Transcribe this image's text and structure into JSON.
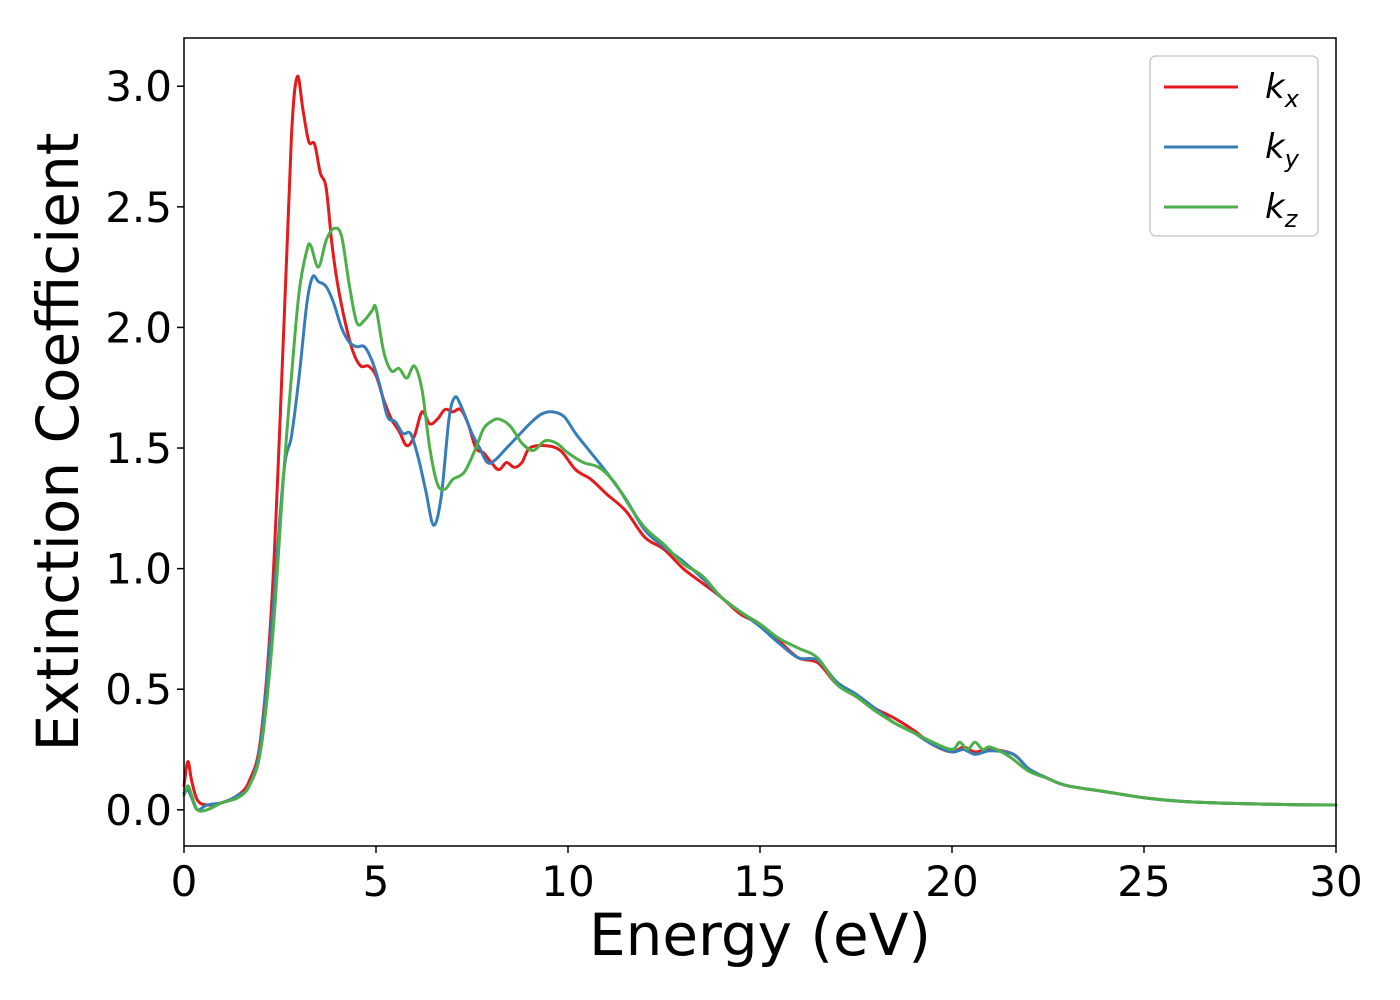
{
  "chart_data": {
    "type": "line",
    "xlabel": "Energy (eV)",
    "ylabel": "Extinction Coefficient",
    "xlim": [
      0,
      30
    ],
    "ylim": [
      -0.15,
      3.2
    ],
    "xticks": [
      0,
      5,
      10,
      15,
      20,
      25,
      30
    ],
    "xtick_labels": [
      "0",
      "5",
      "10",
      "15",
      "20",
      "25",
      "30"
    ],
    "yticks": [
      0.0,
      0.5,
      1.0,
      1.5,
      2.0,
      2.5,
      3.0
    ],
    "ytick_labels": [
      "0.0",
      "0.5",
      "1.0",
      "1.5",
      "2.0",
      "2.5",
      "3.0"
    ],
    "grid": false,
    "legend_position": "top-right",
    "series": [
      {
        "name": "k",
        "subscript": "x",
        "color": "#e41a1c",
        "points": [
          [
            0,
            0.1
          ],
          [
            0.1,
            0.2
          ],
          [
            0.2,
            0.12
          ],
          [
            0.35,
            0.04
          ],
          [
            0.6,
            0.02
          ],
          [
            1.0,
            0.03
          ],
          [
            1.4,
            0.06
          ],
          [
            1.7,
            0.12
          ],
          [
            2.0,
            0.3
          ],
          [
            2.3,
            0.9
          ],
          [
            2.6,
            2.0
          ],
          [
            2.8,
            2.8
          ],
          [
            2.95,
            3.04
          ],
          [
            3.1,
            2.9
          ],
          [
            3.25,
            2.77
          ],
          [
            3.4,
            2.76
          ],
          [
            3.55,
            2.64
          ],
          [
            3.7,
            2.58
          ],
          [
            3.85,
            2.35
          ],
          [
            4.0,
            2.18
          ],
          [
            4.2,
            2.02
          ],
          [
            4.4,
            1.9
          ],
          [
            4.6,
            1.84
          ],
          [
            4.8,
            1.84
          ],
          [
            5.0,
            1.8
          ],
          [
            5.2,
            1.7
          ],
          [
            5.4,
            1.62
          ],
          [
            5.6,
            1.57
          ],
          [
            5.8,
            1.51
          ],
          [
            6.0,
            1.55
          ],
          [
            6.2,
            1.65
          ],
          [
            6.4,
            1.6
          ],
          [
            6.6,
            1.62
          ],
          [
            6.8,
            1.66
          ],
          [
            7.0,
            1.65
          ],
          [
            7.2,
            1.66
          ],
          [
            7.4,
            1.6
          ],
          [
            7.6,
            1.5
          ],
          [
            7.8,
            1.48
          ],
          [
            8.0,
            1.44
          ],
          [
            8.2,
            1.41
          ],
          [
            8.4,
            1.44
          ],
          [
            8.6,
            1.42
          ],
          [
            8.8,
            1.44
          ],
          [
            9.0,
            1.5
          ],
          [
            9.4,
            1.51
          ],
          [
            9.8,
            1.49
          ],
          [
            10.2,
            1.41
          ],
          [
            10.6,
            1.37
          ],
          [
            11.0,
            1.31
          ],
          [
            11.5,
            1.24
          ],
          [
            12.0,
            1.13
          ],
          [
            12.5,
            1.08
          ],
          [
            13.0,
            1.0
          ],
          [
            13.5,
            0.94
          ],
          [
            14.0,
            0.88
          ],
          [
            14.5,
            0.81
          ],
          [
            15.0,
            0.77
          ],
          [
            15.5,
            0.7
          ],
          [
            16.0,
            0.63
          ],
          [
            16.5,
            0.61
          ],
          [
            17.0,
            0.52
          ],
          [
            17.5,
            0.47
          ],
          [
            18.0,
            0.42
          ],
          [
            18.5,
            0.38
          ],
          [
            19.0,
            0.33
          ],
          [
            19.5,
            0.27
          ],
          [
            20.0,
            0.24
          ],
          [
            20.3,
            0.26
          ],
          [
            20.6,
            0.24
          ],
          [
            21.0,
            0.25
          ],
          [
            21.6,
            0.23
          ],
          [
            22.0,
            0.17
          ],
          [
            22.5,
            0.13
          ],
          [
            23.0,
            0.1
          ],
          [
            24.0,
            0.075
          ],
          [
            25.0,
            0.05
          ],
          [
            26.0,
            0.035
          ],
          [
            27.0,
            0.028
          ],
          [
            28.0,
            0.024
          ],
          [
            29.0,
            0.021
          ],
          [
            30.0,
            0.02
          ]
        ]
      },
      {
        "name": "k",
        "subscript": "y",
        "color": "#377eb8",
        "points": [
          [
            0,
            0.07
          ],
          [
            0.1,
            0.08
          ],
          [
            0.2,
            0.05
          ],
          [
            0.35,
            0.0
          ],
          [
            0.6,
            0.02
          ],
          [
            1.0,
            0.03
          ],
          [
            1.4,
            0.06
          ],
          [
            1.7,
            0.1
          ],
          [
            2.0,
            0.28
          ],
          [
            2.3,
            0.8
          ],
          [
            2.6,
            1.4
          ],
          [
            2.8,
            1.55
          ],
          [
            3.0,
            1.8
          ],
          [
            3.2,
            2.1
          ],
          [
            3.35,
            2.21
          ],
          [
            3.5,
            2.19
          ],
          [
            3.7,
            2.17
          ],
          [
            3.9,
            2.1
          ],
          [
            4.1,
            2.0
          ],
          [
            4.3,
            1.94
          ],
          [
            4.5,
            1.92
          ],
          [
            4.7,
            1.92
          ],
          [
            4.9,
            1.86
          ],
          [
            5.1,
            1.76
          ],
          [
            5.3,
            1.63
          ],
          [
            5.5,
            1.61
          ],
          [
            5.7,
            1.56
          ],
          [
            5.9,
            1.56
          ],
          [
            6.1,
            1.46
          ],
          [
            6.3,
            1.32
          ],
          [
            6.5,
            1.18
          ],
          [
            6.7,
            1.3
          ],
          [
            6.9,
            1.62
          ],
          [
            7.05,
            1.71
          ],
          [
            7.2,
            1.68
          ],
          [
            7.5,
            1.56
          ],
          [
            7.7,
            1.5
          ],
          [
            7.9,
            1.44
          ],
          [
            8.1,
            1.45
          ],
          [
            8.4,
            1.5
          ],
          [
            8.7,
            1.55
          ],
          [
            9.0,
            1.6
          ],
          [
            9.3,
            1.64
          ],
          [
            9.6,
            1.65
          ],
          [
            9.9,
            1.63
          ],
          [
            10.2,
            1.56
          ],
          [
            10.6,
            1.48
          ],
          [
            11.0,
            1.4
          ],
          [
            11.5,
            1.29
          ],
          [
            12.0,
            1.16
          ],
          [
            12.5,
            1.09
          ],
          [
            13.0,
            1.03
          ],
          [
            13.5,
            0.96
          ],
          [
            14.0,
            0.88
          ],
          [
            14.5,
            0.82
          ],
          [
            15.0,
            0.76
          ],
          [
            15.5,
            0.69
          ],
          [
            16.0,
            0.63
          ],
          [
            16.5,
            0.62
          ],
          [
            17.0,
            0.53
          ],
          [
            17.5,
            0.48
          ],
          [
            18.0,
            0.42
          ],
          [
            18.5,
            0.36
          ],
          [
            19.0,
            0.32
          ],
          [
            19.5,
            0.27
          ],
          [
            20.0,
            0.24
          ],
          [
            20.3,
            0.25
          ],
          [
            20.6,
            0.23
          ],
          [
            21.0,
            0.245
          ],
          [
            21.6,
            0.23
          ],
          [
            22.0,
            0.17
          ],
          [
            22.5,
            0.13
          ],
          [
            23.0,
            0.1
          ],
          [
            24.0,
            0.075
          ],
          [
            25.0,
            0.05
          ],
          [
            26.0,
            0.035
          ],
          [
            27.0,
            0.028
          ],
          [
            28.0,
            0.024
          ],
          [
            29.0,
            0.021
          ],
          [
            30.0,
            0.02
          ]
        ]
      },
      {
        "name": "k",
        "subscript": "z",
        "color": "#4daf4a",
        "points": [
          [
            0,
            0.06
          ],
          [
            0.1,
            0.1
          ],
          [
            0.2,
            0.06
          ],
          [
            0.35,
            0.0
          ],
          [
            0.6,
            0.0
          ],
          [
            1.0,
            0.03
          ],
          [
            1.4,
            0.05
          ],
          [
            1.7,
            0.1
          ],
          [
            2.0,
            0.25
          ],
          [
            2.3,
            0.7
          ],
          [
            2.6,
            1.4
          ],
          [
            2.8,
            1.8
          ],
          [
            3.0,
            2.15
          ],
          [
            3.2,
            2.32
          ],
          [
            3.3,
            2.34
          ],
          [
            3.5,
            2.25
          ],
          [
            3.7,
            2.36
          ],
          [
            3.9,
            2.41
          ],
          [
            4.1,
            2.38
          ],
          [
            4.3,
            2.18
          ],
          [
            4.5,
            2.02
          ],
          [
            4.7,
            2.03
          ],
          [
            4.9,
            2.07
          ],
          [
            5.0,
            2.08
          ],
          [
            5.2,
            1.9
          ],
          [
            5.4,
            1.82
          ],
          [
            5.6,
            1.83
          ],
          [
            5.8,
            1.79
          ],
          [
            6.0,
            1.84
          ],
          [
            6.2,
            1.74
          ],
          [
            6.4,
            1.5
          ],
          [
            6.6,
            1.35
          ],
          [
            6.8,
            1.33
          ],
          [
            7.0,
            1.37
          ],
          [
            7.3,
            1.4
          ],
          [
            7.6,
            1.5
          ],
          [
            7.8,
            1.58
          ],
          [
            8.0,
            1.61
          ],
          [
            8.2,
            1.62
          ],
          [
            8.5,
            1.59
          ],
          [
            8.8,
            1.52
          ],
          [
            9.1,
            1.49
          ],
          [
            9.4,
            1.53
          ],
          [
            9.7,
            1.52
          ],
          [
            10.0,
            1.48
          ],
          [
            10.4,
            1.44
          ],
          [
            10.8,
            1.42
          ],
          [
            11.2,
            1.36
          ],
          [
            11.6,
            1.26
          ],
          [
            12.0,
            1.17
          ],
          [
            12.5,
            1.1
          ],
          [
            13.0,
            1.02
          ],
          [
            13.5,
            0.97
          ],
          [
            14.0,
            0.88
          ],
          [
            14.5,
            0.82
          ],
          [
            15.0,
            0.77
          ],
          [
            15.5,
            0.71
          ],
          [
            16.0,
            0.67
          ],
          [
            16.5,
            0.63
          ],
          [
            17.0,
            0.52
          ],
          [
            17.5,
            0.47
          ],
          [
            18.0,
            0.41
          ],
          [
            18.5,
            0.36
          ],
          [
            19.0,
            0.32
          ],
          [
            19.5,
            0.28
          ],
          [
            20.0,
            0.25
          ],
          [
            20.2,
            0.28
          ],
          [
            20.4,
            0.25
          ],
          [
            20.6,
            0.28
          ],
          [
            20.8,
            0.25
          ],
          [
            21.0,
            0.26
          ],
          [
            21.5,
            0.22
          ],
          [
            22.0,
            0.16
          ],
          [
            22.5,
            0.13
          ],
          [
            23.0,
            0.1
          ],
          [
            24.0,
            0.075
          ],
          [
            25.0,
            0.05
          ],
          [
            26.0,
            0.035
          ],
          [
            27.0,
            0.028
          ],
          [
            28.0,
            0.024
          ],
          [
            29.0,
            0.021
          ],
          [
            30.0,
            0.02
          ]
        ]
      }
    ]
  }
}
